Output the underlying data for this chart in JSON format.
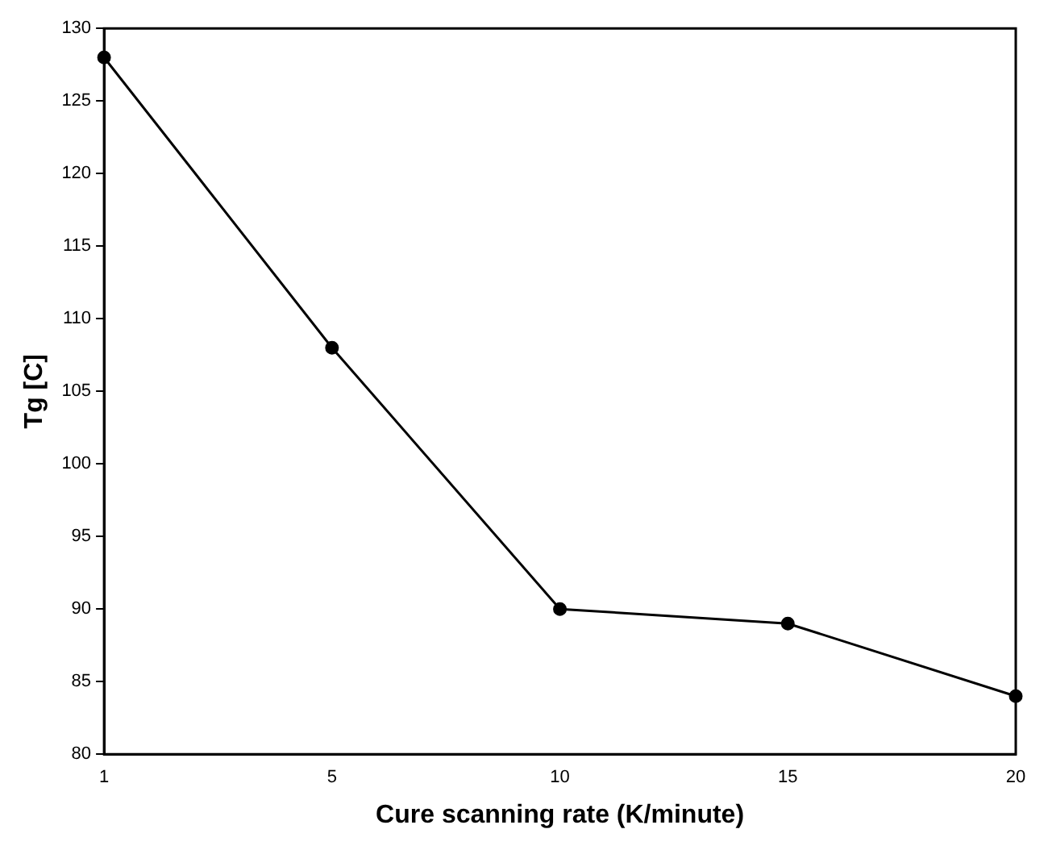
{
  "chart_data": {
    "type": "line",
    "xlabel": "Cure scanning rate (K/minute)",
    "ylabel": "Tg [C]",
    "categories": [
      "1",
      "5",
      "10",
      "15",
      "20"
    ],
    "series": [
      {
        "color": "#000000",
        "values": [
          128,
          108,
          90,
          89,
          84
        ]
      }
    ],
    "ylim": [
      80,
      130
    ],
    "yticks": [
      80,
      85,
      90,
      95,
      100,
      105,
      110,
      115,
      120,
      125,
      130
    ],
    "grid": false,
    "legend": false,
    "marker": "circle",
    "line_style": "solid"
  }
}
